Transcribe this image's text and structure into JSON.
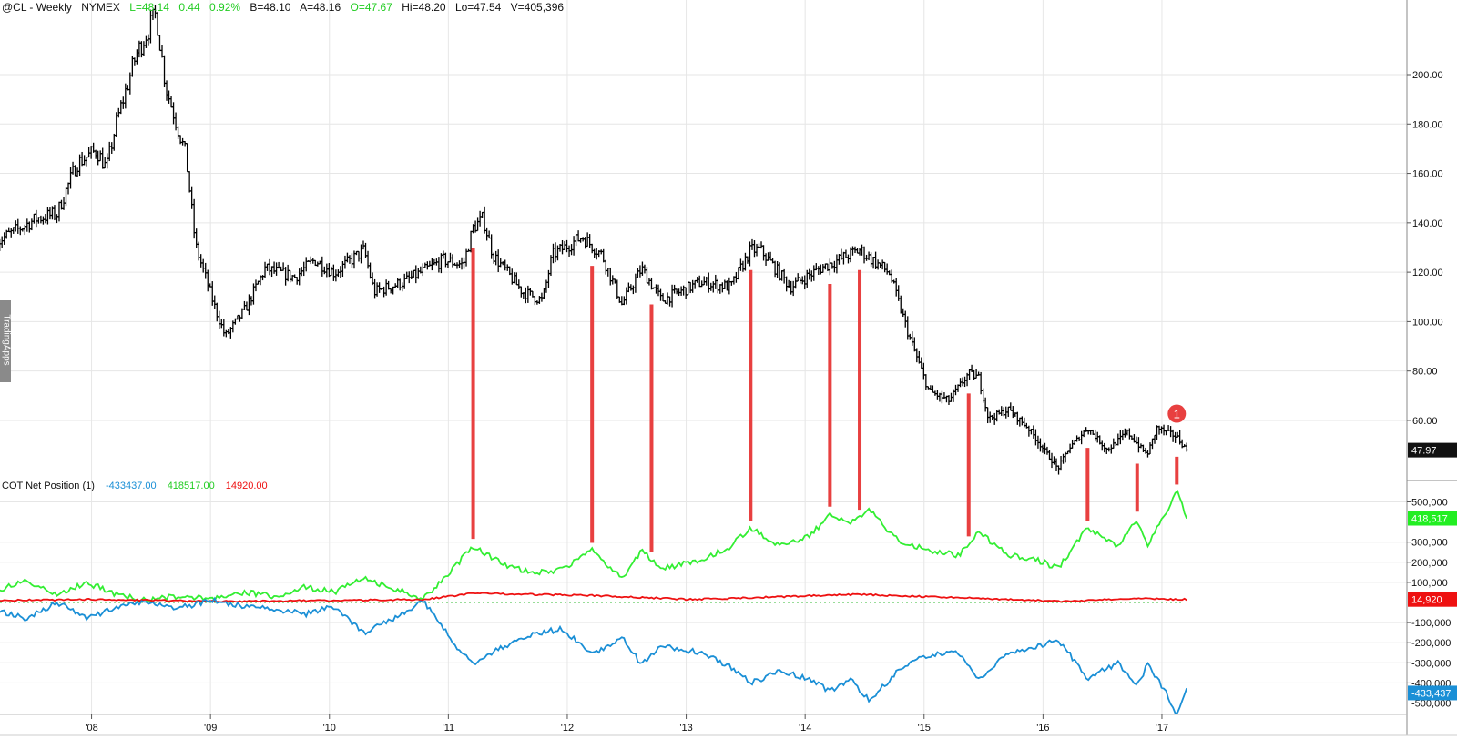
{
  "header": {
    "symbol": "@CL - Weekly",
    "exchange": "NYMEX",
    "last": "L=48.14",
    "change": "0.44",
    "change_pct": "0.92%",
    "bid": "B=48.10",
    "ask": "A=48.16",
    "open": "O=47.67",
    "high": "Hi=48.20",
    "low": "Lo=47.54",
    "volume": "V=405,396"
  },
  "watermark": "TradingApps",
  "cot_header": {
    "title": "COT Net Position (1)",
    "v1": "-433437.00",
    "v2": "418517.00",
    "v3": "14920.00"
  },
  "colors": {
    "price": "#000000",
    "green": "#33ee33",
    "blue": "#1a8fd6",
    "red": "#ee1111",
    "marker": "#e84040",
    "grid": "#e6e6e6"
  },
  "chart_data": [
    {
      "type": "ohlc",
      "pane": "price",
      "y_ticks": [
        "200.00",
        "180.00",
        "160.00",
        "140.00",
        "120.00",
        "100.00",
        "80.00",
        "60.00"
      ],
      "ylim": [
        40,
        225
      ],
      "last_label": "47.97",
      "series": [
        {
          "values": [
            [
              "2007-03",
              132.6
            ],
            [
              "2007-07",
              141.8
            ],
            [
              "2007-09",
              143.6
            ],
            [
              "2007-11",
              164
            ],
            [
              "2008-01",
              169.4
            ],
            [
              "2008-02",
              162
            ],
            [
              "2008-03",
              180.5
            ],
            [
              "2008-05",
              208
            ],
            [
              "2008-07",
              224.7
            ],
            [
              "2008-08",
              195
            ],
            [
              "2008-10",
              167.6
            ],
            [
              "2008-11",
              130.7
            ],
            [
              "2009-01",
              105
            ],
            [
              "2009-02",
              94
            ],
            [
              "2009-04",
              105
            ],
            [
              "2009-06",
              121.5
            ],
            [
              "2009-09",
              118
            ],
            [
              "2009-11",
              125
            ],
            [
              "2010-01",
              119.7
            ],
            [
              "2010-04",
              129
            ],
            [
              "2010-05",
              112
            ],
            [
              "2010-08",
              116
            ],
            [
              "2010-12",
              125
            ],
            [
              "2011-02",
              123
            ],
            [
              "2011-03",
              138
            ],
            [
              "2011-04",
              141.8
            ],
            [
              "2011-05",
              127
            ],
            [
              "2011-08",
              112
            ],
            [
              "2011-10",
              108.6
            ],
            [
              "2011-11",
              127
            ],
            [
              "2012-02",
              134.4
            ],
            [
              "2012-04",
              127
            ],
            [
              "2012-06",
              107
            ],
            [
              "2012-08",
              121.5
            ],
            [
              "2012-10",
              108.6
            ],
            [
              "2013-02",
              116
            ],
            [
              "2013-05",
              114
            ],
            [
              "2013-07",
              129
            ],
            [
              "2013-08",
              129
            ],
            [
              "2013-11",
              114
            ],
            [
              "2014-02",
              121.5
            ],
            [
              "2014-06",
              129
            ],
            [
              "2014-09",
              119.7
            ],
            [
              "2014-11",
              94
            ],
            [
              "2015-01",
              71.8
            ],
            [
              "2015-03",
              68
            ],
            [
              "2015-05",
              79
            ],
            [
              "2015-06",
              77.3
            ],
            [
              "2015-07",
              60.7
            ],
            [
              "2015-09",
              64.4
            ],
            [
              "2015-11",
              57
            ],
            [
              "2016-02",
              40.4
            ],
            [
              "2016-03",
              48
            ],
            [
              "2016-05",
              57
            ],
            [
              "2016-07",
              48
            ],
            [
              "2016-09",
              55.2
            ],
            [
              "2016-11",
              46
            ],
            [
              "2016-12",
              57
            ],
            [
              "2017-02",
              53.4
            ],
            [
              "2017-03",
              47.97
            ]
          ]
        }
      ],
      "annotations": {
        "vertical_markers": [
          "2011-03",
          "2012-03",
          "2012-09",
          "2013-07",
          "2014-03",
          "2014-06",
          "2015-05",
          "2016-05",
          "2016-10",
          "2017-02"
        ],
        "badge": {
          "label": "1",
          "date": "2017-02",
          "value": 62
        }
      }
    },
    {
      "type": "line",
      "pane": "cot",
      "y_ticks": [
        "500,000",
        "300,000",
        "200,000",
        "100,000",
        "-100,000",
        "-200,000",
        "-300,000",
        "-400,000",
        "-500,000"
      ],
      "y_tick_values": [
        500000,
        300000,
        200000,
        100000,
        -100000,
        -200000,
        -300000,
        -400000,
        -500000
      ],
      "ylim": [
        -560000,
        560000
      ],
      "series": [
        {
          "color": "green",
          "last_label": "418,517",
          "values": [
            [
              "2007-03",
              60000
            ],
            [
              "2007-06",
              110000
            ],
            [
              "2007-09",
              40000
            ],
            [
              "2007-12",
              100000
            ],
            [
              "2008-03",
              40000
            ],
            [
              "2008-06",
              10000
            ],
            [
              "2008-09",
              30000
            ],
            [
              "2009-01",
              20000
            ],
            [
              "2009-04",
              50000
            ],
            [
              "2009-07",
              30000
            ],
            [
              "2009-10",
              80000
            ],
            [
              "2010-01",
              50000
            ],
            [
              "2010-04",
              120000
            ],
            [
              "2010-07",
              70000
            ],
            [
              "2010-10",
              20000
            ],
            [
              "2011-01",
              170000
            ],
            [
              "2011-03",
              280000
            ],
            [
              "2011-06",
              190000
            ],
            [
              "2011-09",
              145000
            ],
            [
              "2011-12",
              165000
            ],
            [
              "2012-03",
              260000
            ],
            [
              "2012-06",
              120000
            ],
            [
              "2012-08",
              260000
            ],
            [
              "2012-10",
              170000
            ],
            [
              "2013-02",
              210000
            ],
            [
              "2013-05",
              280000
            ],
            [
              "2013-07",
              370000
            ],
            [
              "2013-10",
              280000
            ],
            [
              "2014-01",
              330000
            ],
            [
              "2014-03",
              440000
            ],
            [
              "2014-05",
              390000
            ],
            [
              "2014-07",
              460000
            ],
            [
              "2014-10",
              300000
            ],
            [
              "2015-01",
              260000
            ],
            [
              "2015-04",
              235000
            ],
            [
              "2015-06",
              350000
            ],
            [
              "2015-09",
              235000
            ],
            [
              "2015-12",
              210000
            ],
            [
              "2016-02",
              170000
            ],
            [
              "2016-05",
              370000
            ],
            [
              "2016-08",
              280000
            ],
            [
              "2016-10",
              415000
            ],
            [
              "2016-11",
              280000
            ],
            [
              "2017-01",
              460000
            ],
            [
              "2017-02",
              550000
            ],
            [
              "2017-03",
              418517
            ]
          ]
        },
        {
          "color": "red",
          "last_label": "14,920",
          "values": [
            [
              "2007-03",
              10000
            ],
            [
              "2008-01",
              15000
            ],
            [
              "2009-01",
              5000
            ],
            [
              "2010-01",
              10000
            ],
            [
              "2010-10",
              15000
            ],
            [
              "2011-03",
              45000
            ],
            [
              "2012-03",
              35000
            ],
            [
              "2013-01",
              15000
            ],
            [
              "2014-06",
              40000
            ],
            [
              "2015-06",
              20000
            ],
            [
              "2016-03",
              5000
            ],
            [
              "2016-10",
              20000
            ],
            [
              "2017-03",
              14920
            ]
          ]
        },
        {
          "color": "blue",
          "last_label": "-433,437",
          "values": [
            [
              "2007-03",
              -40000
            ],
            [
              "2007-06",
              -80000
            ],
            [
              "2007-09",
              0
            ],
            [
              "2007-12",
              -80000
            ],
            [
              "2008-03",
              -20000
            ],
            [
              "2008-06",
              10000
            ],
            [
              "2008-09",
              -30000
            ],
            [
              "2009-01",
              10000
            ],
            [
              "2009-04",
              -20000
            ],
            [
              "2009-07",
              -30000
            ],
            [
              "2009-10",
              -60000
            ],
            [
              "2010-01",
              -20000
            ],
            [
              "2010-04",
              -150000
            ],
            [
              "2010-07",
              -80000
            ],
            [
              "2010-10",
              10000
            ],
            [
              "2011-01",
              -200000
            ],
            [
              "2011-03",
              -310000
            ],
            [
              "2011-06",
              -220000
            ],
            [
              "2011-09",
              -160000
            ],
            [
              "2011-12",
              -130000
            ],
            [
              "2012-03",
              -260000
            ],
            [
              "2012-06",
              -170000
            ],
            [
              "2012-08",
              -310000
            ],
            [
              "2012-10",
              -220000
            ],
            [
              "2013-02",
              -250000
            ],
            [
              "2013-05",
              -320000
            ],
            [
              "2013-07",
              -400000
            ],
            [
              "2013-10",
              -340000
            ],
            [
              "2014-01",
              -380000
            ],
            [
              "2014-03",
              -440000
            ],
            [
              "2014-05",
              -380000
            ],
            [
              "2014-07",
              -490000
            ],
            [
              "2014-10",
              -330000
            ],
            [
              "2015-01",
              -260000
            ],
            [
              "2015-04",
              -250000
            ],
            [
              "2015-06",
              -380000
            ],
            [
              "2015-09",
              -250000
            ],
            [
              "2015-12",
              -220000
            ],
            [
              "2016-02",
              -180000
            ],
            [
              "2016-05",
              -380000
            ],
            [
              "2016-08",
              -300000
            ],
            [
              "2016-10",
              -420000
            ],
            [
              "2016-11",
              -310000
            ],
            [
              "2017-01",
              -450000
            ],
            [
              "2017-02",
              -560000
            ],
            [
              "2017-03",
              -433437
            ]
          ]
        }
      ]
    }
  ],
  "x_axis": {
    "labels": [
      "'08",
      "'09",
      "'10",
      "'11",
      "'12",
      "'13",
      "'14",
      "'15",
      "'16",
      "'17"
    ],
    "years": [
      2008,
      2009,
      2010,
      2011,
      2012,
      2013,
      2014,
      2015,
      2016,
      2017
    ]
  }
}
